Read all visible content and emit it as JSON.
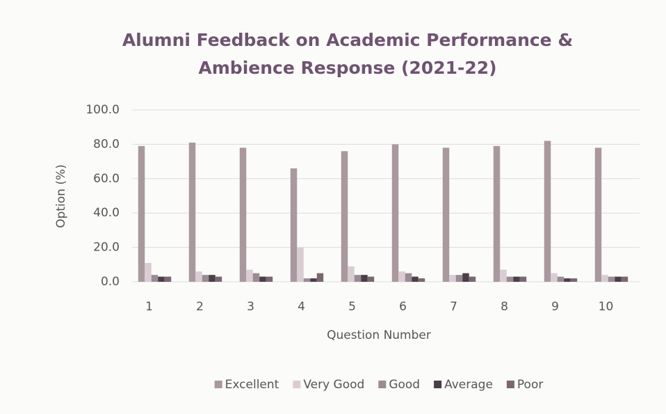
{
  "chart_data": {
    "type": "bar",
    "title": "Alumni Feedback on Academic Performance & Ambience Response (2021-22)",
    "y_label": "Option (%)",
    "x_label": "Question Number",
    "categories": [
      "1",
      "2",
      "3",
      "4",
      "5",
      "6",
      "7",
      "8",
      "9",
      "10"
    ],
    "series": [
      {
        "name": "Excellent",
        "color": "#a9999f",
        "values": [
          79,
          81,
          78,
          66,
          76,
          80,
          78,
          79,
          82,
          78
        ]
      },
      {
        "name": "Very Good",
        "color": "#d9ccd3",
        "values": [
          11,
          6,
          7,
          20,
          9,
          6,
          4,
          7,
          5,
          4
        ]
      },
      {
        "name": "Good",
        "color": "#9b8b94",
        "values": [
          4,
          4,
          5,
          2,
          4,
          5,
          4,
          3,
          3,
          3
        ]
      },
      {
        "name": "Average",
        "color": "#4b3e47",
        "values": [
          3,
          4,
          3,
          2,
          4,
          3,
          5,
          3,
          2,
          3
        ]
      },
      {
        "name": "Poor",
        "color": "#7b6771",
        "values": [
          3,
          3,
          3,
          5,
          3,
          2,
          3,
          3,
          2,
          3
        ]
      }
    ],
    "ylim": [
      0,
      100
    ],
    "yticks": [
      {
        "value": 0,
        "label": "0.0"
      },
      {
        "value": 20,
        "label": "20.0"
      },
      {
        "value": 40,
        "label": "40.0"
      },
      {
        "value": 60,
        "label": "60.0"
      },
      {
        "value": 80,
        "label": "80.0"
      },
      {
        "value": 100,
        "label": "100.0"
      }
    ],
    "grid": true,
    "legend": "bottom"
  }
}
